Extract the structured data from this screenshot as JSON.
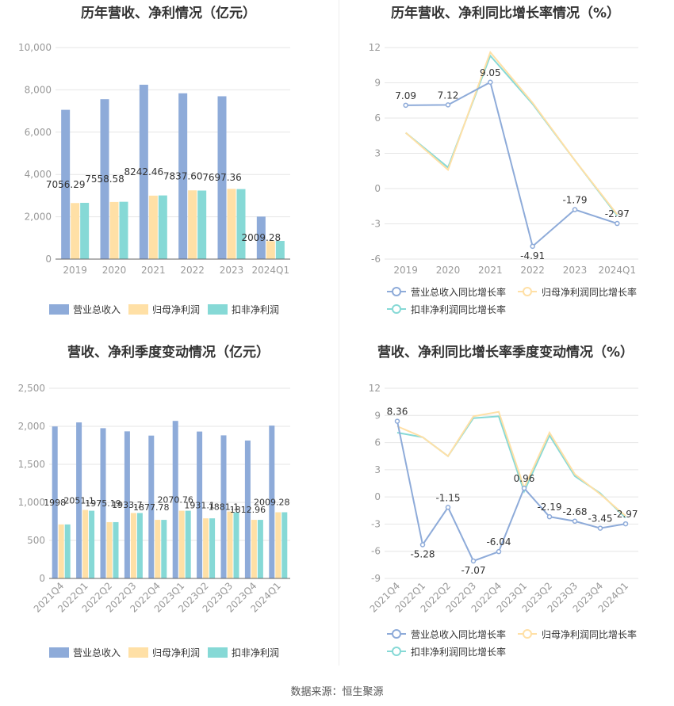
{
  "source_label": "数据来源：恒生聚源",
  "colors": {
    "revenue": "#8eabd9",
    "parent_profit": "#ffe0a6",
    "deducted_profit": "#86d9d6",
    "grid": "#e6e6e6",
    "axis_text": "#999999"
  },
  "chart_data": [
    {
      "type": "bar",
      "title": "历年营收、净利情况（亿元）",
      "categories": [
        "2019",
        "2020",
        "2021",
        "2022",
        "2023",
        "2024Q1"
      ],
      "ylim": [
        0,
        10000
      ],
      "yticks": [
        0,
        2000,
        4000,
        6000,
        8000,
        10000
      ],
      "ytick_labels": [
        "0",
        "2,000",
        "4,000",
        "6,000",
        "8,000",
        "10,000"
      ],
      "grid": true,
      "legend_position": "bottom",
      "series": [
        {
          "name": "营业总收入",
          "values": [
            7056.29,
            7558.58,
            8242.46,
            7837.6,
            7697.36,
            2009.28
          ],
          "labels": [
            "7056.29",
            "7558.58",
            "8242.46",
            "7837.60",
            "7697.36",
            "2009.28"
          ]
        },
        {
          "name": "归母净利润",
          "values": [
            2650,
            2700,
            3000,
            3250,
            3320,
            850
          ]
        },
        {
          "name": "扣非净利润",
          "values": [
            2660,
            2710,
            3010,
            3240,
            3310,
            860
          ]
        }
      ]
    },
    {
      "type": "line",
      "title": "历年营收、净利同比增长率情况（%）",
      "categories": [
        "2019",
        "2020",
        "2021",
        "2022",
        "2023",
        "2024Q1"
      ],
      "ylim": [
        -6,
        12
      ],
      "yticks": [
        -6,
        -3,
        0,
        3,
        6,
        9,
        12
      ],
      "grid": true,
      "legend_position": "bottom",
      "series": [
        {
          "name": "营业总收入同比增长率",
          "values": [
            7.09,
            7.12,
            9.05,
            -4.91,
            -1.79,
            -2.97
          ],
          "labels": [
            "7.09",
            "7.12",
            "9.05",
            "-4.91",
            "-1.79",
            "-2.97"
          ]
        },
        {
          "name": "归母净利润同比增长率",
          "values": [
            4.75,
            1.6,
            11.6,
            7.3,
            2.4,
            -2.2
          ]
        },
        {
          "name": "扣非净利润同比增长率",
          "values": [
            4.75,
            1.8,
            11.3,
            7.2,
            2.4,
            -2.3
          ]
        }
      ]
    },
    {
      "type": "bar",
      "title": "营收、净利季度变动情况（亿元）",
      "categories": [
        "2021Q4",
        "2022Q1",
        "2022Q2",
        "2022Q3",
        "2022Q4",
        "2023Q1",
        "2023Q2",
        "2023Q3",
        "2023Q4",
        "2024Q1"
      ],
      "ylim": [
        0,
        2500
      ],
      "yticks": [
        0,
        500,
        1000,
        1500,
        2000,
        2500
      ],
      "ytick_labels": [
        "0",
        "500",
        "1,000",
        "1,500",
        "2,000",
        "2,500"
      ],
      "grid": true,
      "legend_position": "bottom",
      "series": [
        {
          "name": "营业总收入",
          "values": [
            1998,
            2051.1,
            1975.19,
            1933.7,
            1877.78,
            2070.76,
            1931.1,
            1881.1,
            1812.96,
            2009.28
          ],
          "labels": [
            "1998",
            "2051.1",
            "1975.19",
            "1933.7",
            "1877.78",
            "2070.76",
            "1931.1",
            "1881.1",
            "1812.96",
            "2009.28"
          ]
        },
        {
          "name": "归母净利润",
          "values": [
            710,
            900,
            740,
            860,
            770,
            890,
            790,
            880,
            770,
            870
          ]
        },
        {
          "name": "扣非净利润",
          "values": [
            710,
            890,
            740,
            860,
            770,
            890,
            790,
            870,
            770,
            870
          ]
        }
      ]
    },
    {
      "type": "line",
      "title": "营收、净利同比增长率季度变动情况（%）",
      "categories": [
        "2021Q4",
        "2022Q1",
        "2022Q2",
        "2022Q3",
        "2022Q4",
        "2023Q1",
        "2023Q2",
        "2023Q3",
        "2023Q4",
        "2024Q1"
      ],
      "ylim": [
        -9,
        12
      ],
      "yticks": [
        -9,
        -6,
        -3,
        0,
        3,
        6,
        9,
        12
      ],
      "grid": true,
      "legend_position": "bottom",
      "series": [
        {
          "name": "营业总收入同比增长率",
          "values": [
            8.36,
            -5.28,
            -1.15,
            -7.07,
            -6.04,
            0.96,
            -2.19,
            -2.68,
            -3.45,
            -2.97
          ],
          "labels": [
            "8.36",
            "-5.28",
            "-1.15",
            "-7.07",
            "-6.04",
            "0.96",
            "-2.19",
            "-2.68",
            "-3.45",
            "-2.97"
          ]
        },
        {
          "name": "归母净利润同比增长率",
          "values": [
            7.8,
            6.6,
            4.5,
            8.9,
            9.4,
            1.0,
            7.1,
            2.5,
            0.3,
            -2.1
          ]
        },
        {
          "name": "扣非净利润同比增长率",
          "values": [
            7.1,
            6.6,
            4.5,
            8.7,
            8.9,
            0.6,
            6.8,
            2.3,
            0.4,
            -2.3
          ]
        }
      ]
    }
  ]
}
